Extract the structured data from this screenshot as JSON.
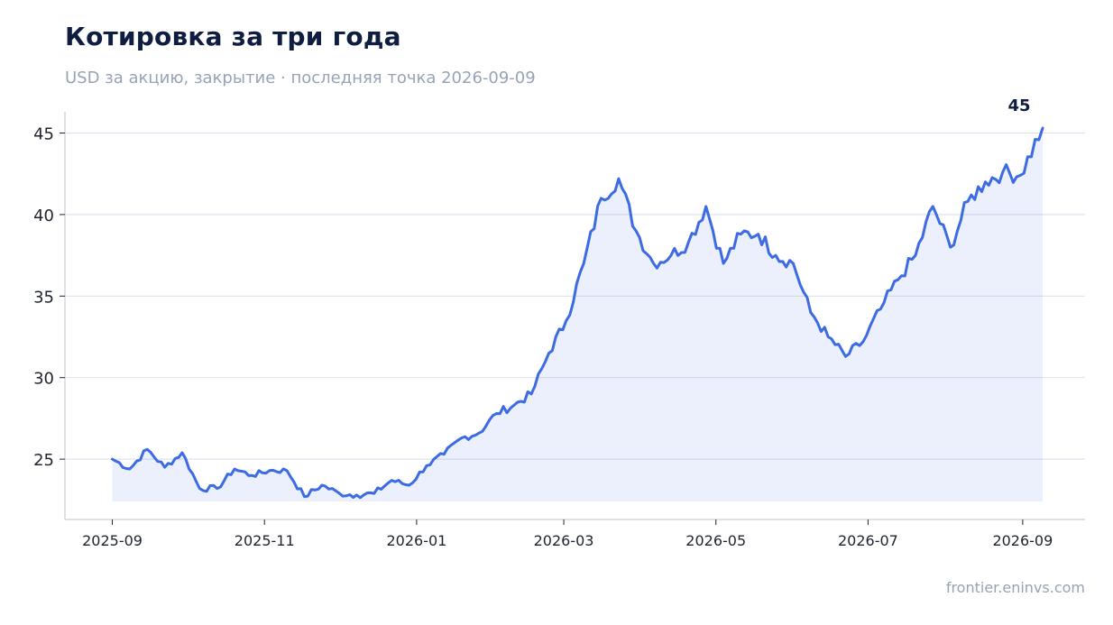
{
  "header": {
    "title": "Котировка за три года",
    "subtitle": "USD за акцию, закрытие · последняя точка 2026-09-09"
  },
  "footer": {
    "source": "frontier.eninvs.com"
  },
  "colors": {
    "line": "#3d6be3",
    "fill": "#3d6be3",
    "grid": "#dde3ee",
    "axis": "#c9cfd9"
  },
  "chart_data": {
    "type": "area",
    "title": "Котировка за три года",
    "subtitle": "USD за акцию, закрытие · последняя точка 2026-09-09",
    "xlabel": "",
    "ylabel": "",
    "grid": true,
    "legend": "none",
    "ylim": [
      21.3,
      46.3
    ],
    "xlim": [
      "2025-08-13",
      "2026-09-26"
    ],
    "baseline": 22.4,
    "y_ticks": [
      25,
      30,
      35,
      40,
      45
    ],
    "x_ticks": [
      "2025-09",
      "2025-11",
      "2026-01",
      "2026-03",
      "2026-05",
      "2026-07",
      "2026-09"
    ],
    "end_label": "45",
    "series": [
      {
        "x": [
          "2025-09-01",
          "2025-09-08",
          "2025-09-15",
          "2025-09-22",
          "2025-09-29",
          "2025-10-06",
          "2025-10-13",
          "2025-10-20",
          "2025-10-27",
          "2025-11-03",
          "2025-11-10",
          "2025-11-17",
          "2025-11-24",
          "2025-12-01",
          "2025-12-08",
          "2025-12-15",
          "2025-12-22",
          "2025-12-29",
          "2026-01-05",
          "2026-01-12",
          "2026-01-19",
          "2026-01-26",
          "2026-02-02",
          "2026-02-09",
          "2026-02-16",
          "2026-02-23",
          "2026-03-02",
          "2026-03-09",
          "2026-03-16",
          "2026-03-23",
          "2026-03-30",
          "2026-04-06",
          "2026-04-13",
          "2026-04-20",
          "2026-04-27",
          "2026-05-04",
          "2026-05-11",
          "2026-05-18",
          "2026-05-25",
          "2026-06-01",
          "2026-06-08",
          "2026-06-15",
          "2026-06-22",
          "2026-06-29",
          "2026-07-06",
          "2026-07-13",
          "2026-07-20",
          "2026-07-27",
          "2026-08-03",
          "2026-08-10",
          "2026-08-17",
          "2026-08-24",
          "2026-08-31",
          "2026-09-09"
        ],
        "values": [
          25.0,
          24.4,
          25.6,
          24.5,
          25.4,
          23.2,
          23.2,
          24.4,
          24.0,
          24.3,
          24.3,
          22.7,
          23.4,
          22.9,
          22.8,
          22.9,
          23.7,
          23.4,
          24.6,
          25.3,
          26.3,
          26.6,
          27.8,
          28.3,
          29.0,
          31.5,
          33.5,
          37.0,
          41.0,
          42.2,
          39.0,
          37.0,
          37.5,
          38.3,
          40.5,
          37.0,
          38.8,
          38.8,
          37.5,
          37.0,
          34.0,
          32.5,
          31.3,
          32.2,
          34.2,
          36.0,
          37.5,
          40.5,
          38.0,
          40.8,
          42.0,
          42.6,
          42.4,
          45.3
        ]
      }
    ]
  }
}
